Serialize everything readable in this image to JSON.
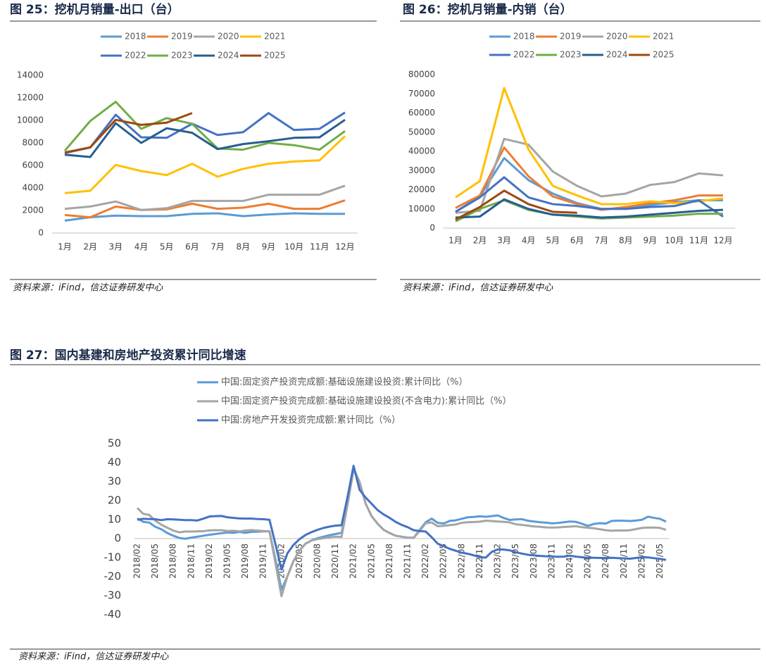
{
  "chart_data": [
    {
      "type": "line",
      "title": "图 25：挖机月销量-出口（台）",
      "source": "资料来源：iFind，信达证券研发中心",
      "categories": [
        "1月",
        "2月",
        "3月",
        "4月",
        "5月",
        "6月",
        "7月",
        "8月",
        "9月",
        "10月",
        "11月",
        "12月"
      ],
      "ylim": [
        0,
        14000
      ],
      "yticks": [
        0,
        2000,
        4000,
        6000,
        8000,
        10000,
        12000,
        14000
      ],
      "grid": false,
      "series": [
        {
          "name": "2018",
          "color": "#5b9bd5",
          "values": [
            1100,
            1400,
            1550,
            1500,
            1500,
            1700,
            1750,
            1500,
            1650,
            1750,
            1700,
            1700
          ]
        },
        {
          "name": "2019",
          "color": "#ed7d31",
          "values": [
            1600,
            1400,
            2350,
            2050,
            2100,
            2600,
            2150,
            2250,
            2600,
            2150,
            2150,
            2900
          ]
        },
        {
          "name": "2020",
          "color": "#a5a5a5",
          "values": [
            2150,
            2350,
            2800,
            2050,
            2200,
            2850,
            2850,
            2850,
            3400,
            3400,
            3400,
            4200
          ]
        },
        {
          "name": "2021",
          "color": "#ffc000",
          "values": [
            3550,
            3750,
            6050,
            5500,
            5150,
            6150,
            5000,
            5700,
            6150,
            6350,
            6450,
            8600
          ]
        },
        {
          "name": "2022",
          "color": "#4472c4",
          "values": [
            7100,
            7600,
            10500,
            8500,
            8450,
            9700,
            8700,
            8950,
            10650,
            9150,
            9250,
            10700
          ]
        },
        {
          "name": "2023",
          "color": "#70ad47",
          "values": [
            7300,
            9950,
            11650,
            9250,
            10200,
            9700,
            7500,
            7400,
            8000,
            7800,
            7400,
            9050
          ]
        },
        {
          "name": "2024",
          "color": "#255e91",
          "values": [
            6950,
            6750,
            9750,
            8000,
            9300,
            8900,
            7450,
            7900,
            8150,
            8450,
            8500,
            10050
          ]
        },
        {
          "name": "2025",
          "color": "#9e480e",
          "values": [
            7150,
            7600,
            10050,
            9600,
            9800,
            10650,
            null,
            null,
            null,
            null,
            null,
            null
          ]
        }
      ]
    },
    {
      "type": "line",
      "title": "图 26：挖机月销量-内销（台）",
      "source": "资料来源：iFind，信达证券研发中心",
      "categories": [
        "1月",
        "2月",
        "3月",
        "4月",
        "5月",
        "6月",
        "7月",
        "8月",
        "9月",
        "10月",
        "11月",
        "12月"
      ],
      "ylim": [
        0,
        80000
      ],
      "yticks": [
        0,
        10000,
        20000,
        30000,
        40000,
        50000,
        60000,
        70000,
        80000
      ],
      "grid": false,
      "series": [
        {
          "name": "2018",
          "color": "#5b9bd5",
          "values": [
            8500,
            16500,
            36500,
            25000,
            18000,
            13000,
            10000,
            10200,
            12000,
            13500,
            14500,
            14500
          ]
        },
        {
          "name": "2019",
          "color": "#ed7d31",
          "values": [
            10500,
            17000,
            42000,
            27000,
            16500,
            12500,
            9500,
            11000,
            13000,
            14500,
            17000,
            17000
          ]
        },
        {
          "name": "2020",
          "color": "#a5a5a5",
          "values": [
            8000,
            9000,
            46500,
            43500,
            29500,
            22000,
            16500,
            18000,
            22500,
            24000,
            28500,
            27500
          ]
        },
        {
          "name": "2021",
          "color": "#ffc000",
          "values": [
            16000,
            24500,
            73000,
            41000,
            22000,
            17000,
            12500,
            12500,
            14000,
            13000,
            14000,
            15500
          ]
        },
        {
          "name": "2022",
          "color": "#4472c4",
          "values": [
            8500,
            16000,
            26500,
            16000,
            12500,
            11500,
            10000,
            10000,
            11000,
            11500,
            14500,
            6000
          ]
        },
        {
          "name": "2023",
          "color": "#70ad47",
          "values": [
            3500,
            10000,
            14500,
            9500,
            7000,
            6000,
            5000,
            5500,
            6000,
            6500,
            7500,
            7500
          ]
        },
        {
          "name": "2024",
          "color": "#255e91",
          "values": [
            5500,
            6000,
            15000,
            10000,
            7000,
            6500,
            5500,
            6000,
            7000,
            8000,
            9000,
            9500
          ]
        },
        {
          "name": "2025",
          "color": "#9e480e",
          "values": [
            4500,
            11000,
            19500,
            12500,
            8500,
            8000,
            null,
            null,
            null,
            null,
            null,
            null
          ]
        }
      ]
    },
    {
      "type": "line",
      "title": "图 27：国内基建和房地产投资累计同比增速",
      "source": "资料来源：iFind，信达证券研发中心",
      "categories": [
        "2018/02",
        null,
        null,
        "2018/05",
        null,
        null,
        "2018/08",
        null,
        null,
        "2018/11",
        null,
        null,
        "2019/02",
        null,
        null,
        "2019/05",
        null,
        null,
        "2019/08",
        null,
        null,
        "2019/11",
        null,
        null,
        "2020/02",
        null,
        null,
        "2020/05",
        null,
        null,
        "2020/08",
        null,
        null,
        "2020/11",
        null,
        null,
        "2021/02",
        null,
        null,
        "2021/05",
        null,
        null,
        "2021/08",
        null,
        null,
        "2021/11",
        null,
        null,
        "2022/02",
        null,
        null,
        "2022/05",
        null,
        null,
        "2022/08",
        null,
        null,
        "2022/11",
        null,
        null,
        "2023/02",
        null,
        null,
        "2023/05",
        null,
        null,
        "2023/08",
        null,
        null,
        "2023/11",
        null,
        null,
        "2024/02",
        null,
        null,
        "2024/05",
        null,
        null,
        "2024/08",
        null,
        null,
        "2024/11",
        null,
        null,
        "2025/02",
        null,
        null,
        "2025/05",
        null
      ],
      "ylim": [
        -40,
        50
      ],
      "yticks": [
        -40,
        -30,
        -20,
        -10,
        0,
        10,
        20,
        30,
        40,
        50
      ],
      "grid": false,
      "series": [
        {
          "name": "中国:固定资产投资完成额:基础设施建设投资:累计同比（%）",
          "color": "#5b9bd5",
          "values": [
            10.6,
            8.8,
            8.4,
            6.2,
            4.9,
            2.9,
            1.5,
            0.3,
            -0.1,
            0.5,
            1.0,
            1.5,
            2.0,
            2.4,
            2.8,
            3.2,
            3.0,
            3.5,
            3.0,
            3.5,
            3.6,
            3.8,
            3.8,
            -11,
            -26.9,
            -19.7,
            -11.8,
            -6.3,
            -2.7,
            -1.0,
            0.2,
            1.0,
            1.8,
            2.4,
            3.0,
            18,
            36.6,
            29.7,
            18.4,
            11.8,
            7.8,
            4.6,
            2.9,
            1.5,
            1.0,
            0.5,
            0.4,
            4.5,
            8.6,
            10.5,
            8.3,
            7.9,
            9.3,
            9.6,
            10.4,
            11.2,
            11.4,
            11.7,
            11.5,
            11.8,
            12.2,
            10.8,
            9.8,
            10.1,
            10.2,
            9.4,
            9.0,
            8.6,
            8.4,
            8.0,
            8.2,
            8.6,
            9.0,
            8.8,
            7.8,
            6.7,
            7.7,
            8.1,
            7.9,
            9.3,
            9.4,
            9.4,
            9.2,
            9.5,
            9.9,
            11.5,
            10.9,
            10.4,
            8.9
          ]
        },
        {
          "name": "中国:固定资产投资完成额:基础设施建设投资(不含电力):累计同比（%）",
          "color": "#a5a5a5",
          "values": [
            16.1,
            13.0,
            12.4,
            9.4,
            7.3,
            5.7,
            4.2,
            3.3,
            3.7,
            3.7,
            3.8,
            3.9,
            4.3,
            4.4,
            4.4,
            4.0,
            4.1,
            3.8,
            4.2,
            4.5,
            4.2,
            4.0,
            3.8,
            -13,
            -30.3,
            -19.7,
            -11.8,
            -6.3,
            -2.7,
            -1.0,
            -0.3,
            0.2,
            0.7,
            1.0,
            0.9,
            18,
            36.6,
            29.7,
            18.4,
            11.8,
            7.8,
            4.6,
            2.9,
            1.5,
            1.0,
            0.5,
            0.4,
            4,
            8.1,
            8.5,
            6.5,
            6.7,
            7.1,
            7.4,
            8.3,
            8.6,
            8.7,
            8.9,
            9.4,
            9.2,
            9.0,
            8.8,
            8.5,
            7.5,
            7.2,
            6.8,
            6.4,
            6.2,
            5.9,
            5.8,
            5.9,
            6.1,
            6.3,
            6.5,
            6.0,
            5.7,
            5.4,
            4.9,
            4.4,
            4.1,
            4.3,
            4.2,
            4.4,
            5.0,
            5.6,
            5.8,
            5.8,
            5.6,
            4.6
          ]
        },
        {
          "name": "中国:房地产开发投资完成额:累计同比（%）",
          "color": "#4472c4",
          "values": [
            9.9,
            10.4,
            10.3,
            10.2,
            9.7,
            10.2,
            10.1,
            9.9,
            9.7,
            9.7,
            9.5,
            10.5,
            11.6,
            11.8,
            11.9,
            11.2,
            10.9,
            10.6,
            10.5,
            10.5,
            10.3,
            10.2,
            9.9,
            -3,
            -16.3,
            -7.7,
            -3.3,
            -0.3,
            1.9,
            3.4,
            4.6,
            5.6,
            6.3,
            6.8,
            7.0,
            22,
            38.3,
            25.6,
            21.6,
            18.3,
            15.0,
            12.7,
            10.9,
            8.8,
            7.2,
            6.0,
            4.4,
            4,
            3.7,
            0.7,
            -2.7,
            -4.0,
            -5.4,
            -6.4,
            -7.4,
            -8.0,
            -8.8,
            -9.8,
            -10.0,
            -7,
            -5.7,
            -5.8,
            -6.2,
            -7.2,
            -7.9,
            -8.5,
            -8.8,
            -9.1,
            -9.3,
            -9.4,
            -9.6,
            -9.5,
            -9.0,
            -9.5,
            -9.8,
            -10.1,
            -10.1,
            -10.2,
            -10.2,
            -10.1,
            -10.3,
            -10.4,
            -10.6,
            -10.2,
            -9.8,
            -9.9,
            -10.3,
            -10.7,
            -11.2
          ]
        }
      ]
    }
  ]
}
